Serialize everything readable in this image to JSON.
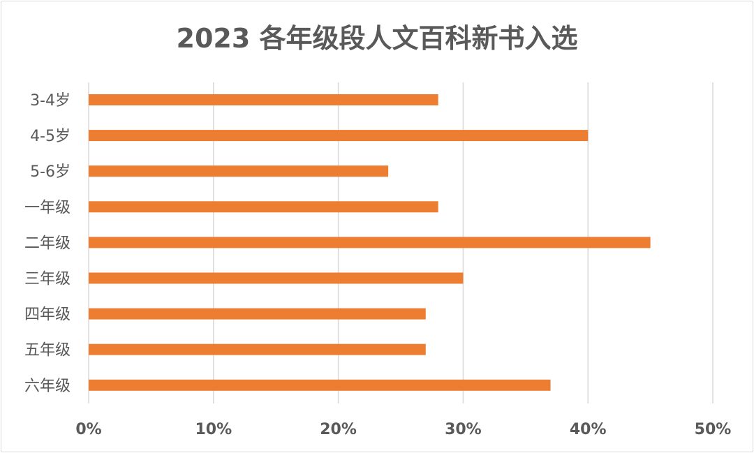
{
  "chart_data": {
    "type": "bar",
    "orientation": "horizontal",
    "title": "2023 各年级段人文百科新书入选",
    "categories": [
      "3-4岁",
      "4-5岁",
      "5-6岁",
      "一年级",
      "二年级",
      "三年级",
      "四年级",
      "五年级",
      "六年级"
    ],
    "values": [
      0.28,
      0.4,
      0.24,
      0.28,
      0.45,
      0.3,
      0.27,
      0.27,
      0.37
    ],
    "xlim": [
      0,
      0.5
    ],
    "xticks": [
      0,
      0.1,
      0.2,
      0.3,
      0.4,
      0.5
    ],
    "xtick_labels": [
      "0%",
      "10%",
      "20%",
      "30%",
      "40%",
      "50%"
    ],
    "grid": true,
    "bar_color": "#ED7D31",
    "grid_color": "#D9D9D9"
  }
}
